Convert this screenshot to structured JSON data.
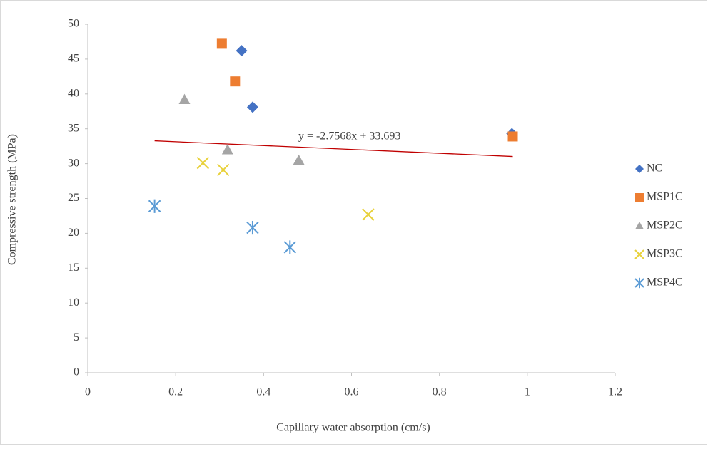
{
  "chart_data": {
    "type": "scatter",
    "x_label": "Capillary water absorption (cm/s)",
    "y_label": "Compressive strength (MPa)",
    "xlim": [
      0,
      1.2
    ],
    "xticks": [
      0,
      0.2,
      0.4,
      0.6,
      0.8,
      1,
      1.2
    ],
    "ylim": [
      0,
      50
    ],
    "yticks": [
      0,
      5,
      10,
      15,
      20,
      25,
      30,
      35,
      40,
      45,
      50
    ],
    "grid": false,
    "legend": "right",
    "series": [
      {
        "name": "NC",
        "color": "#4472c4",
        "marker": "diamond",
        "x": [
          0.35,
          0.375,
          0.965
        ],
        "values": [
          46.2,
          38.1,
          34.3
        ]
      },
      {
        "name": "MSP1C",
        "color": "#ed7d31",
        "marker": "square",
        "x": [
          0.305,
          0.335,
          0.967
        ],
        "values": [
          47.2,
          41.8,
          33.9
        ]
      },
      {
        "name": "MSP2C",
        "color": "#a5a5a5",
        "marker": "triangle",
        "x": [
          0.22,
          0.318,
          0.48
        ],
        "values": [
          39.2,
          32.0,
          30.5
        ]
      },
      {
        "name": "MSP3C",
        "color": "#e8d13a",
        "marker": "x",
        "x": [
          0.262,
          0.308,
          0.638
        ],
        "values": [
          30.1,
          29.1,
          22.7
        ]
      },
      {
        "name": "MSP4C",
        "color": "#5b9bd5",
        "marker": "asterisk",
        "x": [
          0.152,
          0.375,
          0.46
        ],
        "values": [
          23.9,
          20.8,
          18.0
        ]
      }
    ],
    "trendline": {
      "label": "y = -2.7568x + 33.693",
      "slope": -2.7568,
      "intercept": 33.693,
      "color": "#c00000"
    }
  }
}
